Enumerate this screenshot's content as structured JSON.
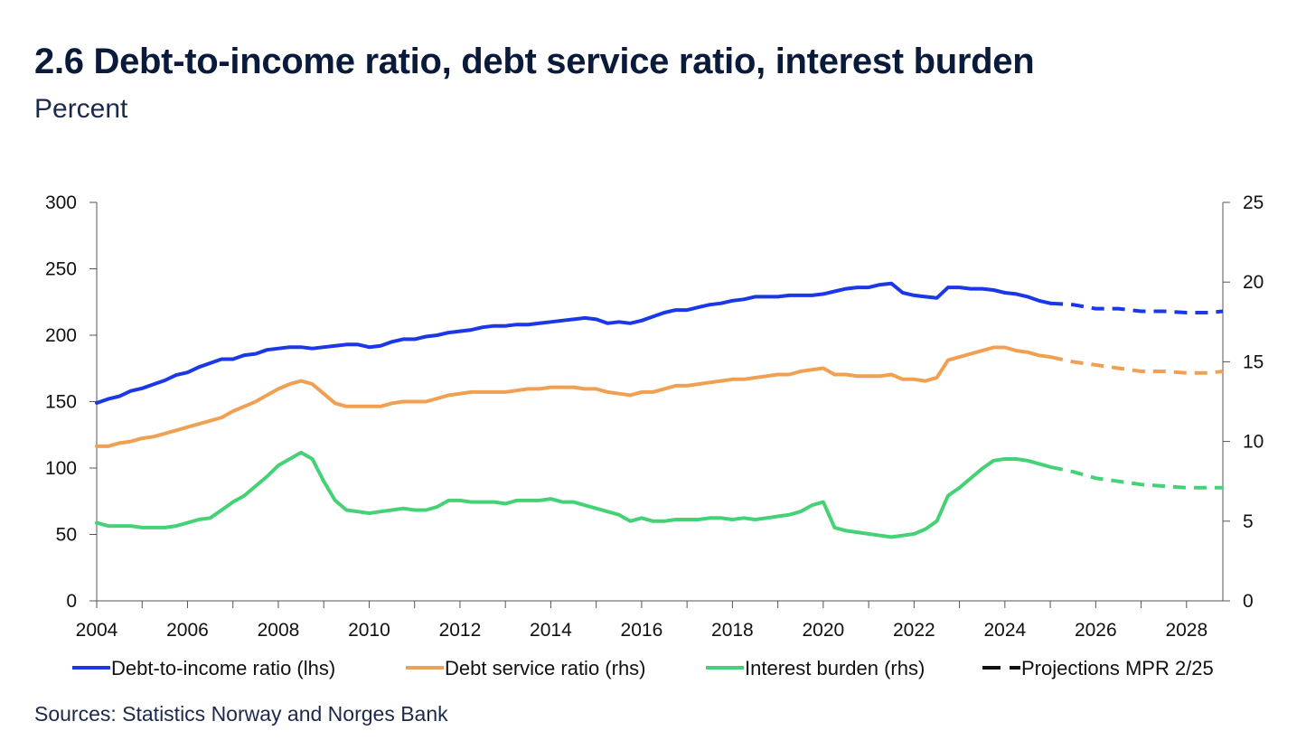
{
  "header": {
    "title": "2.6 Debt-to-income ratio, debt service ratio, interest burden",
    "subtitle": "Percent"
  },
  "footer": {
    "source": "Sources: Statistics Norway and  Norges Bank"
  },
  "colors": {
    "debt_to_income": "#1a37e8",
    "debt_service": "#f0a052",
    "interest_burden": "#45d276",
    "projection": "#111111"
  },
  "chart_data": {
    "type": "line",
    "title": "2.6 Debt-to-income ratio, debt service ratio, interest burden",
    "subtitle": "Percent",
    "xlim": [
      2004,
      2028.8
    ],
    "x_ticks": [
      "2004",
      "2006",
      "2008",
      "2010",
      "2012",
      "2014",
      "2016",
      "2018",
      "2020",
      "2022",
      "2024",
      "2026",
      "2028"
    ],
    "y_left": {
      "lim": [
        0,
        300
      ],
      "ticks": [
        "0",
        "50",
        "100",
        "150",
        "200",
        "250",
        "300"
      ]
    },
    "y_right": {
      "lim": [
        0,
        25
      ],
      "ticks": [
        "0",
        "5",
        "10",
        "15",
        "20",
        "25"
      ]
    },
    "grid": false,
    "legend_position": "bottom",
    "legend": [
      {
        "key": "debt_to_income",
        "label": "Debt-to-income ratio (lhs)",
        "style": "solid"
      },
      {
        "key": "debt_service",
        "label": "Debt service ratio (rhs)",
        "style": "solid"
      },
      {
        "key": "interest_burden",
        "label": "Interest burden (rhs)",
        "style": "solid"
      },
      {
        "key": "projection",
        "label": "Projections MPR 2/25",
        "style": "dashed"
      }
    ],
    "series": [
      {
        "key": "debt_to_income",
        "name": "Debt-to-income ratio (lhs)",
        "axis": "left",
        "history": [
          [
            2004.0,
            149
          ],
          [
            2004.25,
            152
          ],
          [
            2004.5,
            154
          ],
          [
            2004.75,
            158
          ],
          [
            2005.0,
            160
          ],
          [
            2005.25,
            163
          ],
          [
            2005.5,
            166
          ],
          [
            2005.75,
            170
          ],
          [
            2006.0,
            172
          ],
          [
            2006.25,
            176
          ],
          [
            2006.5,
            179
          ],
          [
            2006.75,
            182
          ],
          [
            2007.0,
            182
          ],
          [
            2007.25,
            185
          ],
          [
            2007.5,
            186
          ],
          [
            2007.75,
            189
          ],
          [
            2008.0,
            190
          ],
          [
            2008.25,
            191
          ],
          [
            2008.5,
            191
          ],
          [
            2008.75,
            190
          ],
          [
            2009.0,
            191
          ],
          [
            2009.25,
            192
          ],
          [
            2009.5,
            193
          ],
          [
            2009.75,
            193
          ],
          [
            2010.0,
            191
          ],
          [
            2010.25,
            192
          ],
          [
            2010.5,
            195
          ],
          [
            2010.75,
            197
          ],
          [
            2011.0,
            197
          ],
          [
            2011.25,
            199
          ],
          [
            2011.5,
            200
          ],
          [
            2011.75,
            202
          ],
          [
            2012.0,
            203
          ],
          [
            2012.25,
            204
          ],
          [
            2012.5,
            206
          ],
          [
            2012.75,
            207
          ],
          [
            2013.0,
            207
          ],
          [
            2013.25,
            208
          ],
          [
            2013.5,
            208
          ],
          [
            2013.75,
            209
          ],
          [
            2014.0,
            210
          ],
          [
            2014.25,
            211
          ],
          [
            2014.5,
            212
          ],
          [
            2014.75,
            213
          ],
          [
            2015.0,
            212
          ],
          [
            2015.25,
            209
          ],
          [
            2015.5,
            210
          ],
          [
            2015.75,
            209
          ],
          [
            2016.0,
            211
          ],
          [
            2016.25,
            214
          ],
          [
            2016.5,
            217
          ],
          [
            2016.75,
            219
          ],
          [
            2017.0,
            219
          ],
          [
            2017.25,
            221
          ],
          [
            2017.5,
            223
          ],
          [
            2017.75,
            224
          ],
          [
            2018.0,
            226
          ],
          [
            2018.25,
            227
          ],
          [
            2018.5,
            229
          ],
          [
            2018.75,
            229
          ],
          [
            2019.0,
            229
          ],
          [
            2019.25,
            230
          ],
          [
            2019.5,
            230
          ],
          [
            2019.75,
            230
          ],
          [
            2020.0,
            231
          ],
          [
            2020.25,
            233
          ],
          [
            2020.5,
            235
          ],
          [
            2020.75,
            236
          ],
          [
            2021.0,
            236
          ],
          [
            2021.25,
            238
          ],
          [
            2021.5,
            239
          ],
          [
            2021.75,
            232
          ],
          [
            2022.0,
            230
          ],
          [
            2022.25,
            229
          ],
          [
            2022.5,
            228
          ],
          [
            2022.75,
            236
          ],
          [
            2023.0,
            236
          ],
          [
            2023.25,
            235
          ],
          [
            2023.5,
            235
          ],
          [
            2023.75,
            234
          ],
          [
            2024.0,
            232
          ],
          [
            2024.25,
            231
          ],
          [
            2024.5,
            229
          ],
          [
            2024.75,
            226
          ],
          [
            2025.0,
            224
          ]
        ],
        "projection": [
          [
            2025.0,
            224
          ],
          [
            2025.5,
            223
          ],
          [
            2026.0,
            220
          ],
          [
            2026.5,
            220
          ],
          [
            2027.0,
            218
          ],
          [
            2027.5,
            218
          ],
          [
            2028.0,
            217
          ],
          [
            2028.5,
            217
          ],
          [
            2028.8,
            218
          ]
        ]
      },
      {
        "key": "debt_service",
        "name": "Debt service ratio (rhs)",
        "axis": "right",
        "history": [
          [
            2004.0,
            9.7
          ],
          [
            2004.25,
            9.7
          ],
          [
            2004.5,
            9.9
          ],
          [
            2004.75,
            10.0
          ],
          [
            2005.0,
            10.2
          ],
          [
            2005.25,
            10.3
          ],
          [
            2005.5,
            10.5
          ],
          [
            2005.75,
            10.7
          ],
          [
            2006.0,
            10.9
          ],
          [
            2006.25,
            11.1
          ],
          [
            2006.5,
            11.3
          ],
          [
            2006.75,
            11.5
          ],
          [
            2007.0,
            11.9
          ],
          [
            2007.25,
            12.2
          ],
          [
            2007.5,
            12.5
          ],
          [
            2007.75,
            12.9
          ],
          [
            2008.0,
            13.3
          ],
          [
            2008.25,
            13.6
          ],
          [
            2008.5,
            13.8
          ],
          [
            2008.75,
            13.6
          ],
          [
            2009.0,
            13.0
          ],
          [
            2009.25,
            12.4
          ],
          [
            2009.5,
            12.2
          ],
          [
            2009.75,
            12.2
          ],
          [
            2010.0,
            12.2
          ],
          [
            2010.25,
            12.2
          ],
          [
            2010.5,
            12.4
          ],
          [
            2010.75,
            12.5
          ],
          [
            2011.0,
            12.5
          ],
          [
            2011.25,
            12.5
          ],
          [
            2011.5,
            12.7
          ],
          [
            2011.75,
            12.9
          ],
          [
            2012.0,
            13.0
          ],
          [
            2012.25,
            13.1
          ],
          [
            2012.5,
            13.1
          ],
          [
            2012.75,
            13.1
          ],
          [
            2013.0,
            13.1
          ],
          [
            2013.25,
            13.2
          ],
          [
            2013.5,
            13.3
          ],
          [
            2013.75,
            13.3
          ],
          [
            2014.0,
            13.4
          ],
          [
            2014.25,
            13.4
          ],
          [
            2014.5,
            13.4
          ],
          [
            2014.75,
            13.3
          ],
          [
            2015.0,
            13.3
          ],
          [
            2015.25,
            13.1
          ],
          [
            2015.5,
            13.0
          ],
          [
            2015.75,
            12.9
          ],
          [
            2016.0,
            13.1
          ],
          [
            2016.25,
            13.1
          ],
          [
            2016.5,
            13.3
          ],
          [
            2016.75,
            13.5
          ],
          [
            2017.0,
            13.5
          ],
          [
            2017.25,
            13.6
          ],
          [
            2017.5,
            13.7
          ],
          [
            2017.75,
            13.8
          ],
          [
            2018.0,
            13.9
          ],
          [
            2018.25,
            13.9
          ],
          [
            2018.5,
            14.0
          ],
          [
            2018.75,
            14.1
          ],
          [
            2019.0,
            14.2
          ],
          [
            2019.25,
            14.2
          ],
          [
            2019.5,
            14.4
          ],
          [
            2019.75,
            14.5
          ],
          [
            2020.0,
            14.6
          ],
          [
            2020.25,
            14.2
          ],
          [
            2020.5,
            14.2
          ],
          [
            2020.75,
            14.1
          ],
          [
            2021.0,
            14.1
          ],
          [
            2021.25,
            14.1
          ],
          [
            2021.5,
            14.2
          ],
          [
            2021.75,
            13.9
          ],
          [
            2022.0,
            13.9
          ],
          [
            2022.25,
            13.8
          ],
          [
            2022.5,
            14.0
          ],
          [
            2022.75,
            15.1
          ],
          [
            2023.0,
            15.3
          ],
          [
            2023.25,
            15.5
          ],
          [
            2023.5,
            15.7
          ],
          [
            2023.75,
            15.9
          ],
          [
            2024.0,
            15.9
          ],
          [
            2024.25,
            15.7
          ],
          [
            2024.5,
            15.6
          ],
          [
            2024.75,
            15.4
          ],
          [
            2025.0,
            15.3
          ]
        ],
        "projection": [
          [
            2025.0,
            15.3
          ],
          [
            2025.5,
            15.0
          ],
          [
            2026.0,
            14.8
          ],
          [
            2026.5,
            14.6
          ],
          [
            2027.0,
            14.4
          ],
          [
            2027.5,
            14.4
          ],
          [
            2028.0,
            14.3
          ],
          [
            2028.5,
            14.3
          ],
          [
            2028.8,
            14.4
          ]
        ]
      },
      {
        "key": "interest_burden",
        "name": "Interest burden (rhs)",
        "axis": "right",
        "history": [
          [
            2004.0,
            4.9
          ],
          [
            2004.25,
            4.7
          ],
          [
            2004.5,
            4.7
          ],
          [
            2004.75,
            4.7
          ],
          [
            2005.0,
            4.6
          ],
          [
            2005.25,
            4.6
          ],
          [
            2005.5,
            4.6
          ],
          [
            2005.75,
            4.7
          ],
          [
            2006.0,
            4.9
          ],
          [
            2006.25,
            5.1
          ],
          [
            2006.5,
            5.2
          ],
          [
            2006.75,
            5.7
          ],
          [
            2007.0,
            6.2
          ],
          [
            2007.25,
            6.6
          ],
          [
            2007.5,
            7.2
          ],
          [
            2007.75,
            7.8
          ],
          [
            2008.0,
            8.5
          ],
          [
            2008.25,
            8.9
          ],
          [
            2008.5,
            9.3
          ],
          [
            2008.75,
            8.9
          ],
          [
            2009.0,
            7.5
          ],
          [
            2009.25,
            6.3
          ],
          [
            2009.5,
            5.7
          ],
          [
            2009.75,
            5.6
          ],
          [
            2010.0,
            5.5
          ],
          [
            2010.25,
            5.6
          ],
          [
            2010.5,
            5.7
          ],
          [
            2010.75,
            5.8
          ],
          [
            2011.0,
            5.7
          ],
          [
            2011.25,
            5.7
          ],
          [
            2011.5,
            5.9
          ],
          [
            2011.75,
            6.3
          ],
          [
            2012.0,
            6.3
          ],
          [
            2012.25,
            6.2
          ],
          [
            2012.5,
            6.2
          ],
          [
            2012.75,
            6.2
          ],
          [
            2013.0,
            6.1
          ],
          [
            2013.25,
            6.3
          ],
          [
            2013.5,
            6.3
          ],
          [
            2013.75,
            6.3
          ],
          [
            2014.0,
            6.4
          ],
          [
            2014.25,
            6.2
          ],
          [
            2014.5,
            6.2
          ],
          [
            2014.75,
            6.0
          ],
          [
            2015.0,
            5.8
          ],
          [
            2015.25,
            5.6
          ],
          [
            2015.5,
            5.4
          ],
          [
            2015.75,
            5.0
          ],
          [
            2016.0,
            5.2
          ],
          [
            2016.25,
            5.0
          ],
          [
            2016.5,
            5.0
          ],
          [
            2016.75,
            5.1
          ],
          [
            2017.0,
            5.1
          ],
          [
            2017.25,
            5.1
          ],
          [
            2017.5,
            5.2
          ],
          [
            2017.75,
            5.2
          ],
          [
            2018.0,
            5.1
          ],
          [
            2018.25,
            5.2
          ],
          [
            2018.5,
            5.1
          ],
          [
            2018.75,
            5.2
          ],
          [
            2019.0,
            5.3
          ],
          [
            2019.25,
            5.4
          ],
          [
            2019.5,
            5.6
          ],
          [
            2019.75,
            6.0
          ],
          [
            2020.0,
            6.2
          ],
          [
            2020.25,
            4.6
          ],
          [
            2020.5,
            4.4
          ],
          [
            2020.75,
            4.3
          ],
          [
            2021.0,
            4.2
          ],
          [
            2021.25,
            4.1
          ],
          [
            2021.5,
            4.0
          ],
          [
            2021.75,
            4.1
          ],
          [
            2022.0,
            4.2
          ],
          [
            2022.25,
            4.5
          ],
          [
            2022.5,
            5.0
          ],
          [
            2022.75,
            6.6
          ],
          [
            2023.0,
            7.1
          ],
          [
            2023.25,
            7.7
          ],
          [
            2023.5,
            8.3
          ],
          [
            2023.75,
            8.8
          ],
          [
            2024.0,
            8.9
          ],
          [
            2024.25,
            8.9
          ],
          [
            2024.5,
            8.8
          ],
          [
            2024.75,
            8.6
          ],
          [
            2025.0,
            8.4
          ]
        ],
        "projection": [
          [
            2025.0,
            8.4
          ],
          [
            2025.5,
            8.1
          ],
          [
            2026.0,
            7.7
          ],
          [
            2026.5,
            7.5
          ],
          [
            2027.0,
            7.3
          ],
          [
            2027.5,
            7.2
          ],
          [
            2028.0,
            7.1
          ],
          [
            2028.5,
            7.1
          ],
          [
            2028.8,
            7.1
          ]
        ]
      }
    ]
  }
}
